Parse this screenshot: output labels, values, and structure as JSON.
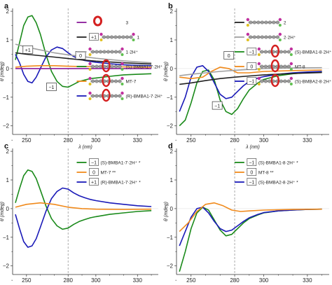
{
  "colors": {
    "green": "#1a8a1a",
    "orange": "#f08a1c",
    "blue": "#1a1ab8",
    "purple": "#8a1a9a",
    "black": "#222222",
    "gray": "#a0a0a0",
    "red": "#d42020"
  },
  "chart_data": [
    {
      "panel": "a",
      "type": "line",
      "xlabel": "λ (nm)",
      "ylabel": "θ (mdeg)",
      "xlim": [
        240,
        345
      ],
      "ylim": [
        -2.3,
        2.1
      ],
      "xticks": [
        250,
        280,
        300,
        330
      ],
      "yticks": [
        -2,
        -1,
        0,
        1,
        2
      ],
      "ref_line_x": 280,
      "legend": [
        {
          "color": "purple",
          "badge": "",
          "label": "3",
          "mol": "ring"
        },
        {
          "color": "black",
          "badge": "+1",
          "label": "1",
          "mol": "rod"
        },
        {
          "color": "gray",
          "badge": "",
          "label": "1·2H⁺",
          "mol": "rod"
        },
        {
          "color": "green",
          "badge": "",
          "label": "(S)-BMBA1-7·2H⁺",
          "mol": "rotaxane"
        },
        {
          "color": "orange",
          "badge": "",
          "label": "MT-7",
          "mol": "rotaxane"
        },
        {
          "color": "blue",
          "badge": "",
          "label": "(R)-BMBA1-7·2H⁺",
          "mol": "rotaxane"
        }
      ],
      "annotations": [
        {
          "text": "+1",
          "x": 251,
          "y": 0.65
        },
        {
          "text": "0",
          "x": 289,
          "y": 0.45
        },
        {
          "text": "−1",
          "x": 268,
          "y": -0.65
        }
      ],
      "series": [
        {
          "color": "green",
          "x": [
            242,
            245,
            248,
            251,
            254,
            257,
            260,
            264,
            268,
            272,
            276,
            280,
            284,
            288,
            292,
            296,
            300,
            310,
            320,
            330,
            340
          ],
          "y": [
            0.3,
            0.9,
            1.5,
            1.8,
            1.85,
            1.6,
            1.2,
            0.5,
            -0.1,
            -0.45,
            -0.62,
            -0.65,
            -0.55,
            -0.45,
            -0.4,
            -0.35,
            -0.33,
            -0.27,
            -0.22,
            -0.2,
            -0.18
          ]
        },
        {
          "color": "blue",
          "x": [
            242,
            245,
            248,
            251,
            254,
            257,
            260,
            264,
            268,
            272,
            276,
            280,
            284,
            288,
            292,
            296,
            300,
            310,
            320,
            330,
            340
          ],
          "y": [
            0.5,
            0.2,
            -0.2,
            -0.45,
            -0.5,
            -0.3,
            0.0,
            0.4,
            0.65,
            0.75,
            0.7,
            0.55,
            0.42,
            0.33,
            0.28,
            0.25,
            0.22,
            0.17,
            0.13,
            0.11,
            0.1
          ]
        },
        {
          "color": "orange",
          "x": [
            242,
            250,
            260,
            270,
            280,
            290,
            300,
            320,
            340
          ],
          "y": [
            0.05,
            0.08,
            0.1,
            0.1,
            0.08,
            0.07,
            0.07,
            0.06,
            0.05
          ]
        },
        {
          "color": "black",
          "x": [
            242,
            250,
            260,
            270,
            280,
            290,
            300,
            320,
            340
          ],
          "y": [
            0.55,
            0.5,
            0.45,
            0.4,
            0.35,
            0.3,
            0.26,
            0.2,
            0.16
          ]
        },
        {
          "color": "gray",
          "x": [
            242,
            250,
            260,
            270,
            280,
            290,
            300,
            320,
            340
          ],
          "y": [
            0.85,
            0.75,
            0.65,
            0.55,
            0.48,
            0.42,
            0.36,
            0.27,
            0.2
          ]
        },
        {
          "color": "purple",
          "x": [
            242,
            250,
            260,
            270,
            280,
            290,
            300,
            320,
            340
          ],
          "y": [
            0.0,
            0.0,
            0.0,
            0.0,
            0.0,
            0.0,
            0.0,
            0.0,
            0.0
          ]
        }
      ]
    },
    {
      "panel": "b",
      "type": "line",
      "xlabel": "λ (nm)",
      "ylabel": "θ (mdeg)",
      "xlim": [
        240,
        345
      ],
      "ylim": [
        -2.3,
        2.1
      ],
      "xticks": [
        250,
        280,
        300,
        330
      ],
      "yticks": [
        -2,
        -1,
        0,
        1,
        2
      ],
      "ref_line_x": 280,
      "legend": [
        {
          "color": "black",
          "badge": "",
          "label": "2",
          "mol": "rod"
        },
        {
          "color": "gray",
          "badge": "",
          "label": "2·2H⁺",
          "mol": "rod"
        },
        {
          "color": "green",
          "badge": "−1",
          "label": "(S)-BMBA1-8·2H⁺",
          "mol": "rotaxane"
        },
        {
          "color": "orange",
          "badge": "0",
          "label": "MT-8",
          "mol": "rotaxane"
        },
        {
          "color": "blue",
          "badge": "−1",
          "label": "(S)-BMBA2-8·2H⁺",
          "mol": "rotaxane"
        }
      ],
      "annotations": [
        {
          "text": "0",
          "x": 276,
          "y": 0.45
        },
        {
          "text": "−1",
          "x": 268,
          "y": -1.3
        }
      ],
      "series": [
        {
          "color": "green",
          "x": [
            242,
            246,
            250,
            254,
            258,
            262,
            266,
            270,
            274,
            278,
            282,
            286,
            290,
            296,
            300,
            310,
            320,
            330,
            340
          ],
          "y": [
            -2.0,
            -1.8,
            -1.2,
            -0.5,
            -0.1,
            -0.05,
            -0.4,
            -1.1,
            -1.5,
            -1.6,
            -1.4,
            -1.05,
            -0.75,
            -0.5,
            -0.38,
            -0.25,
            -0.18,
            -0.14,
            -0.12
          ]
        },
        {
          "color": "blue",
          "x": [
            242,
            246,
            250,
            254,
            258,
            262,
            266,
            270,
            274,
            278,
            282,
            286,
            290,
            296,
            300,
            310,
            320,
            330,
            340
          ],
          "y": [
            -1.5,
            -1.0,
            -0.3,
            0.05,
            0.1,
            -0.1,
            -0.5,
            -0.9,
            -1.05,
            -1.0,
            -0.8,
            -0.6,
            -0.45,
            -0.33,
            -0.28,
            -0.2,
            -0.15,
            -0.12,
            -0.1
          ]
        },
        {
          "color": "orange",
          "x": [
            242,
            250,
            258,
            264,
            270,
            276,
            282,
            290,
            300,
            320,
            340
          ],
          "y": [
            -0.3,
            -0.35,
            -0.3,
            -0.1,
            0.05,
            0.0,
            -0.15,
            -0.15,
            -0.1,
            -0.07,
            -0.05
          ]
        },
        {
          "color": "black",
          "x": [
            242,
            250,
            260,
            270,
            280,
            290,
            300,
            320,
            340
          ],
          "y": [
            -0.55,
            -0.5,
            -0.42,
            -0.35,
            -0.3,
            -0.26,
            -0.22,
            -0.17,
            -0.14
          ]
        },
        {
          "color": "gray",
          "x": [
            242,
            250,
            260,
            270,
            280,
            290,
            300,
            320,
            340
          ],
          "y": [
            -0.25,
            -0.2,
            -0.15,
            -0.1,
            -0.06,
            -0.03,
            0.0,
            0.02,
            0.03
          ]
        }
      ]
    },
    {
      "panel": "c",
      "type": "line",
      "xlabel": "λ (nm)",
      "ylabel": "θ (mdeg)",
      "xlim": [
        240,
        345
      ],
      "ylim": [
        -2.3,
        2.1
      ],
      "xticks": [
        250,
        280,
        300,
        330
      ],
      "yticks": [
        -2,
        -1,
        0,
        1,
        2
      ],
      "ref_line_x": 280,
      "legend": [
        {
          "color": "green",
          "badge": "−1",
          "label": "(S)-BMBA1-7·2H⁺ *",
          "mol": ""
        },
        {
          "color": "orange",
          "badge": "0",
          "label": "MT-7 **",
          "mol": ""
        },
        {
          "color": "blue",
          "badge": "+1",
          "label": "(R)-BMBA1-7·2H⁺ *",
          "mol": ""
        }
      ],
      "annotations": [],
      "series": [
        {
          "color": "green",
          "x": [
            242,
            245,
            248,
            251,
            254,
            257,
            260,
            264,
            268,
            272,
            276,
            280,
            284,
            288,
            292,
            296,
            300,
            310,
            320,
            330,
            340
          ],
          "y": [
            0.2,
            0.7,
            1.15,
            1.35,
            1.3,
            1.05,
            0.65,
            0.1,
            -0.35,
            -0.6,
            -0.72,
            -0.68,
            -0.55,
            -0.45,
            -0.38,
            -0.32,
            -0.28,
            -0.2,
            -0.15,
            -0.1,
            -0.07
          ]
        },
        {
          "color": "blue",
          "x": [
            242,
            245,
            248,
            251,
            254,
            257,
            260,
            264,
            268,
            272,
            276,
            280,
            284,
            288,
            292,
            296,
            300,
            310,
            320,
            330,
            340
          ],
          "y": [
            -0.2,
            -0.7,
            -1.15,
            -1.35,
            -1.3,
            -1.05,
            -0.65,
            -0.1,
            0.35,
            0.6,
            0.72,
            0.68,
            0.55,
            0.45,
            0.38,
            0.32,
            0.28,
            0.2,
            0.15,
            0.1,
            0.07
          ]
        },
        {
          "color": "orange",
          "x": [
            242,
            250,
            260,
            270,
            280,
            290,
            300,
            320,
            340
          ],
          "y": [
            0.05,
            0.15,
            0.2,
            0.15,
            0.05,
            0.0,
            -0.02,
            -0.03,
            -0.02
          ]
        }
      ]
    },
    {
      "panel": "d",
      "type": "line",
      "xlabel": "λ (nm)",
      "ylabel": "θ (mdeg)",
      "xlim": [
        240,
        345
      ],
      "ylim": [
        -2.3,
        2.1
      ],
      "xticks": [
        250,
        280,
        300,
        330
      ],
      "yticks": [
        -2,
        -1,
        0,
        1,
        2
      ],
      "ref_line_x": 280,
      "legend": [
        {
          "color": "green",
          "badge": "−1",
          "label": "(S)-BMBA1-8·2H⁺ *",
          "mol": ""
        },
        {
          "color": "orange",
          "badge": "0",
          "label": "MT-8 **",
          "mol": ""
        },
        {
          "color": "blue",
          "badge": "−1",
          "label": "(S)-BMBA2-8·2H⁺ *",
          "mol": ""
        }
      ],
      "annotations": [],
      "series": [
        {
          "color": "green",
          "x": [
            242,
            246,
            250,
            254,
            258,
            262,
            266,
            270,
            274,
            278,
            282,
            286,
            290,
            296,
            300,
            310,
            320,
            330,
            340
          ],
          "y": [
            -2.2,
            -1.5,
            -0.7,
            -0.15,
            0.05,
            -0.05,
            -0.4,
            -0.75,
            -0.95,
            -0.9,
            -0.7,
            -0.5,
            -0.35,
            -0.22,
            -0.15,
            -0.08,
            -0.05,
            -0.03,
            -0.02
          ]
        },
        {
          "color": "blue",
          "x": [
            242,
            246,
            250,
            254,
            258,
            262,
            266,
            270,
            274,
            278,
            282,
            286,
            290,
            296,
            300,
            310,
            320,
            330,
            340
          ],
          "y": [
            -1.3,
            -0.8,
            -0.3,
            0.0,
            0.05,
            -0.15,
            -0.45,
            -0.7,
            -0.8,
            -0.75,
            -0.6,
            -0.45,
            -0.32,
            -0.2,
            -0.14,
            -0.08,
            -0.05,
            -0.03,
            -0.02
          ]
        },
        {
          "color": "orange",
          "x": [
            242,
            248,
            254,
            260,
            266,
            272,
            278,
            284,
            290,
            300,
            320,
            340
          ],
          "y": [
            -0.8,
            -0.5,
            -0.1,
            0.15,
            0.2,
            0.1,
            -0.05,
            -0.1,
            -0.08,
            -0.05,
            -0.03,
            -0.02
          ]
        }
      ]
    }
  ]
}
